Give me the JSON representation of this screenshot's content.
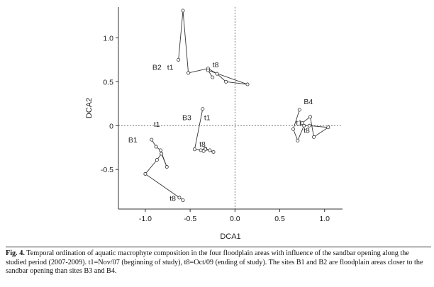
{
  "chart_data": {
    "type": "scatter",
    "title": "",
    "xlabel": "DCA1",
    "ylabel": "DCA2",
    "xlim": [
      -1.3,
      1.2
    ],
    "ylim": [
      -0.95,
      1.35
    ],
    "xticks": [
      "-1.0",
      "-0.5",
      "0.0",
      "0.5",
      "1.0"
    ],
    "xtick_values": [
      -1.0,
      -0.5,
      0.0,
      0.5,
      1.0
    ],
    "yticks": [
      "1.0",
      "0.5",
      "0",
      "-0.5"
    ],
    "ytick_values": [
      1.0,
      0.5,
      0.0,
      -0.5
    ],
    "reference_lines": "dashed at x=0 and y=0",
    "series": [
      {
        "name": "B1",
        "start_label": "t1",
        "end_label": "t8",
        "x": [
          -0.93,
          -0.88,
          -0.83,
          -0.76,
          -0.82,
          -0.87,
          -1.0,
          -0.62,
          -0.58
        ],
        "y": [
          -0.16,
          -0.24,
          -0.28,
          -0.47,
          -0.32,
          -0.39,
          -0.55,
          -0.82,
          -0.85
        ]
      },
      {
        "name": "B2",
        "start_label": "t1",
        "end_label": "t8",
        "x": [
          -0.63,
          -0.58,
          -0.52,
          -0.3,
          -0.2,
          -0.1,
          0.14,
          -0.3,
          -0.25
        ],
        "y": [
          0.75,
          1.31,
          0.6,
          0.65,
          0.59,
          0.5,
          0.47,
          0.63,
          0.55
        ]
      },
      {
        "name": "B3",
        "start_label": "t1",
        "end_label": "t8",
        "x": [
          -0.36,
          -0.45,
          -0.38,
          -0.33,
          -0.28,
          -0.24,
          -0.33,
          -0.35
        ],
        "y": [
          0.19,
          -0.27,
          -0.28,
          -0.26,
          -0.28,
          -0.3,
          -0.27,
          -0.29
        ]
      },
      {
        "name": "B4",
        "start_label": "t1",
        "end_label": "t8",
        "x": [
          0.72,
          0.65,
          0.7,
          0.77,
          0.83,
          1.04,
          0.88,
          0.84,
          0.75
        ],
        "y": [
          0.18,
          -0.04,
          -0.17,
          0.0,
          0.0,
          -0.02,
          -0.13,
          0.1,
          0.03
        ]
      }
    ]
  },
  "caption": {
    "fig_label": "Fig. 4.",
    "text": "Temporal ordination of aquatic macrophyte composition in the four floodplain areas with influence of the sandbar opening along the studied period (2007-2009). t1=Nov/07 (beginning of study), t8=Oct/09 (ending of study). The sites B1 and B2 are floodplain areas closer to the sandbar opening than sites B3 and B4."
  }
}
